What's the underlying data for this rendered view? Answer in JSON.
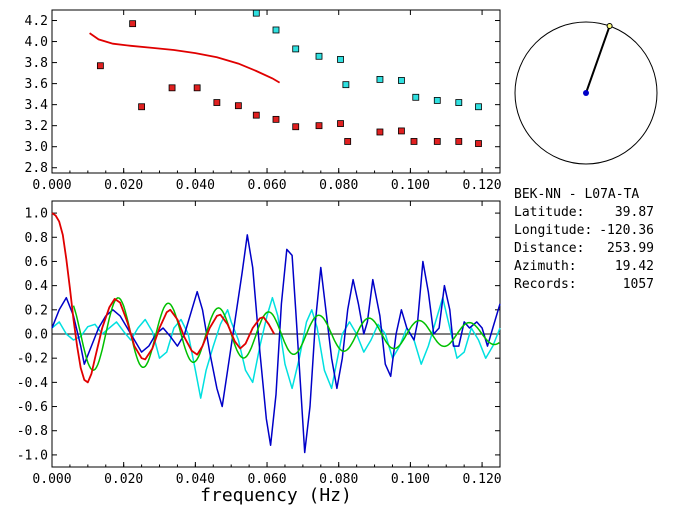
{
  "colors": {
    "red": "#e00000",
    "cyan": "#00e0e0",
    "blue": "#0000c8",
    "green": "#00c000",
    "square_red": "#e02020",
    "square_cyan": "#30e0e0",
    "center_dot": "#0000c8",
    "tip_dot": "#ffff80"
  },
  "info": {
    "station": "BEK-NN  -  L07A-TA",
    "latitude_label": "Latitude:",
    "latitude": "39.87",
    "longitude_label": "Longitude:",
    "longitude": "-120.36",
    "distance_label": "Distance:",
    "distance": "253.99",
    "azimuth_label": "Azimuth:",
    "azimuth": "19.42",
    "records_label": "Records:",
    "records": "1057"
  },
  "compass": {
    "azimuth_deg": 19.42
  },
  "chart_data": [
    {
      "type": "scatter",
      "title": "",
      "xlabel": "",
      "ylabel": "",
      "xlim": [
        0.0,
        0.125
      ],
      "ylim": [
        2.75,
        4.3
      ],
      "x_ticks": [
        "0.000",
        "0.020",
        "0.040",
        "0.060",
        "0.080",
        "0.100",
        "0.120"
      ],
      "y_ticks": [
        "2.8",
        "3.0",
        "3.2",
        "3.4",
        "3.6",
        "3.8",
        "4.0",
        "4.2"
      ],
      "series": [
        {
          "color_key": "square_red",
          "points": [
            [
              0.0135,
              3.77
            ],
            [
              0.0225,
              4.17
            ],
            [
              0.025,
              3.38
            ],
            [
              0.0335,
              3.56
            ],
            [
              0.0405,
              3.56
            ],
            [
              0.046,
              3.42
            ],
            [
              0.052,
              3.39
            ],
            [
              0.057,
              3.3
            ],
            [
              0.0625,
              3.26
            ],
            [
              0.068,
              3.19
            ],
            [
              0.0745,
              3.2
            ],
            [
              0.0805,
              3.22
            ],
            [
              0.0825,
              3.05
            ],
            [
              0.0915,
              3.14
            ],
            [
              0.0975,
              3.15
            ],
            [
              0.101,
              3.05
            ],
            [
              0.1075,
              3.05
            ],
            [
              0.1135,
              3.05
            ],
            [
              0.119,
              3.03
            ]
          ]
        },
        {
          "color_key": "square_cyan",
          "points": [
            [
              0.057,
              4.27
            ],
            [
              0.0625,
              4.11
            ],
            [
              0.068,
              3.93
            ],
            [
              0.0745,
              3.86
            ],
            [
              0.0805,
              3.83
            ],
            [
              0.082,
              3.59
            ],
            [
              0.0915,
              3.64
            ],
            [
              0.0975,
              3.63
            ],
            [
              0.1015,
              3.47
            ],
            [
              0.1075,
              3.44
            ],
            [
              0.1135,
              3.42
            ],
            [
              0.119,
              3.38
            ]
          ]
        },
        {
          "type": "line",
          "color_key": "red",
          "points": [
            [
              0.0105,
              4.08
            ],
            [
              0.013,
              4.02
            ],
            [
              0.017,
              3.98
            ],
            [
              0.022,
              3.96
            ],
            [
              0.028,
              3.94
            ],
            [
              0.034,
              3.92
            ],
            [
              0.04,
              3.89
            ],
            [
              0.046,
              3.85
            ],
            [
              0.052,
              3.79
            ],
            [
              0.057,
              3.72
            ],
            [
              0.0615,
              3.65
            ],
            [
              0.0635,
              3.61
            ]
          ]
        }
      ]
    },
    {
      "type": "line",
      "title": "",
      "xlabel": "frequency (Hz)",
      "ylabel": "",
      "xlim": [
        0.0,
        0.125
      ],
      "ylim": [
        -1.1,
        1.1
      ],
      "x_ticks": [
        "0.000",
        "0.020",
        "0.040",
        "0.060",
        "0.080",
        "0.100",
        "0.120"
      ],
      "y_ticks": [
        "-1.0",
        "-0.8",
        "-0.6",
        "-0.4",
        "-0.2",
        "0.0",
        "0.2",
        "0.4",
        "0.6",
        "0.8",
        "1.0"
      ],
      "series": [
        {
          "color_key": "cyan",
          "points": [
            [
              0.0,
              0.05
            ],
            [
              0.002,
              0.1
            ],
            [
              0.004,
              0.0
            ],
            [
              0.006,
              -0.05
            ],
            [
              0.008,
              -0.02
            ],
            [
              0.01,
              0.06
            ],
            [
              0.012,
              0.08
            ],
            [
              0.014,
              0.0
            ],
            [
              0.016,
              0.05
            ],
            [
              0.018,
              0.1
            ],
            [
              0.02,
              0.02
            ],
            [
              0.022,
              -0.05
            ],
            [
              0.024,
              0.05
            ],
            [
              0.026,
              0.12
            ],
            [
              0.028,
              0.02
            ],
            [
              0.03,
              -0.2
            ],
            [
              0.032,
              -0.15
            ],
            [
              0.034,
              0.05
            ],
            [
              0.036,
              0.12
            ],
            [
              0.038,
              0.0
            ],
            [
              0.04,
              -0.3
            ],
            [
              0.0415,
              -0.53
            ],
            [
              0.043,
              -0.3
            ],
            [
              0.045,
              -0.1
            ],
            [
              0.047,
              0.08
            ],
            [
              0.049,
              0.2
            ],
            [
              0.05,
              0.1
            ],
            [
              0.052,
              -0.05
            ],
            [
              0.054,
              -0.3
            ],
            [
              0.056,
              -0.4
            ],
            [
              0.058,
              -0.1
            ],
            [
              0.06,
              0.15
            ],
            [
              0.0615,
              0.3
            ],
            [
              0.063,
              0.15
            ],
            [
              0.065,
              -0.25
            ],
            [
              0.067,
              -0.45
            ],
            [
              0.069,
              -0.2
            ],
            [
              0.071,
              0.1
            ],
            [
              0.0725,
              0.2
            ],
            [
              0.074,
              0.05
            ],
            [
              0.076,
              -0.3
            ],
            [
              0.078,
              -0.45
            ],
            [
              0.079,
              -0.3
            ],
            [
              0.081,
              0.0
            ],
            [
              0.083,
              0.1
            ],
            [
              0.085,
              0.0
            ],
            [
              0.087,
              -0.15
            ],
            [
              0.089,
              -0.05
            ],
            [
              0.091,
              0.08
            ],
            [
              0.093,
              0.0
            ],
            [
              0.095,
              -0.2
            ],
            [
              0.097,
              -0.1
            ],
            [
              0.099,
              0.05
            ],
            [
              0.101,
              -0.05
            ],
            [
              0.103,
              -0.25
            ],
            [
              0.105,
              -0.1
            ],
            [
              0.107,
              0.1
            ],
            [
              0.109,
              0.3
            ],
            [
              0.111,
              0.05
            ],
            [
              0.113,
              -0.2
            ],
            [
              0.115,
              -0.15
            ],
            [
              0.117,
              0.05
            ],
            [
              0.119,
              -0.05
            ],
            [
              0.121,
              -0.2
            ],
            [
              0.123,
              -0.1
            ],
            [
              0.125,
              0.05
            ]
          ]
        },
        {
          "color_key": "blue",
          "points": [
            [
              0.0,
              0.05
            ],
            [
              0.002,
              0.2
            ],
            [
              0.004,
              0.3
            ],
            [
              0.006,
              0.15
            ],
            [
              0.008,
              -0.1
            ],
            [
              0.009,
              -0.25
            ],
            [
              0.011,
              -0.1
            ],
            [
              0.013,
              0.05
            ],
            [
              0.015,
              0.15
            ],
            [
              0.017,
              0.2
            ],
            [
              0.019,
              0.15
            ],
            [
              0.021,
              0.05
            ],
            [
              0.023,
              -0.05
            ],
            [
              0.025,
              -0.15
            ],
            [
              0.027,
              -0.1
            ],
            [
              0.029,
              0.0
            ],
            [
              0.031,
              0.05
            ],
            [
              0.033,
              -0.02
            ],
            [
              0.035,
              -0.1
            ],
            [
              0.037,
              0.0
            ],
            [
              0.039,
              0.2
            ],
            [
              0.0405,
              0.35
            ],
            [
              0.042,
              0.2
            ],
            [
              0.044,
              -0.15
            ],
            [
              0.046,
              -0.45
            ],
            [
              0.0475,
              -0.6
            ],
            [
              0.049,
              -0.3
            ],
            [
              0.051,
              0.1
            ],
            [
              0.053,
              0.5
            ],
            [
              0.0545,
              0.82
            ],
            [
              0.056,
              0.55
            ],
            [
              0.058,
              -0.15
            ],
            [
              0.0598,
              -0.7
            ],
            [
              0.061,
              -0.92
            ],
            [
              0.0625,
              -0.5
            ],
            [
              0.064,
              0.25
            ],
            [
              0.0655,
              0.7
            ],
            [
              0.067,
              0.65
            ],
            [
              0.068,
              0.2
            ],
            [
              0.0695,
              -0.5
            ],
            [
              0.0705,
              -0.98
            ],
            [
              0.072,
              -0.6
            ],
            [
              0.0735,
              0.1
            ],
            [
              0.075,
              0.55
            ],
            [
              0.076,
              0.3
            ],
            [
              0.078,
              -0.2
            ],
            [
              0.0795,
              -0.45
            ],
            [
              0.081,
              -0.2
            ],
            [
              0.0825,
              0.2
            ],
            [
              0.084,
              0.45
            ],
            [
              0.0855,
              0.25
            ],
            [
              0.087,
              0.0
            ],
            [
              0.088,
              0.1
            ],
            [
              0.0895,
              0.45
            ],
            [
              0.0915,
              0.15
            ],
            [
              0.093,
              -0.25
            ],
            [
              0.0945,
              -0.35
            ],
            [
              0.096,
              0.0
            ],
            [
              0.0975,
              0.2
            ],
            [
              0.099,
              0.05
            ],
            [
              0.101,
              -0.05
            ],
            [
              0.102,
              0.1
            ],
            [
              0.1035,
              0.6
            ],
            [
              0.105,
              0.35
            ],
            [
              0.1065,
              0.0
            ],
            [
              0.108,
              0.05
            ],
            [
              0.1095,
              0.4
            ],
            [
              0.111,
              0.2
            ],
            [
              0.112,
              -0.1
            ],
            [
              0.1135,
              -0.1
            ],
            [
              0.115,
              0.1
            ],
            [
              0.1165,
              0.05
            ],
            [
              0.1185,
              0.1
            ],
            [
              0.12,
              0.05
            ],
            [
              0.1215,
              -0.1
            ],
            [
              0.123,
              0.05
            ],
            [
              0.125,
              0.25
            ]
          ]
        },
        {
          "color_key": "green",
          "amplitude": 0.3,
          "period": 0.014,
          "phase_x": 0.0185,
          "decay": 0.55,
          "points": []
        },
        {
          "color_key": "red",
          "points": [
            [
              0.0,
              1.0
            ],
            [
              0.001,
              0.98
            ],
            [
              0.002,
              0.93
            ],
            [
              0.003,
              0.82
            ],
            [
              0.004,
              0.62
            ],
            [
              0.005,
              0.38
            ],
            [
              0.006,
              0.12
            ],
            [
              0.007,
              -0.1
            ],
            [
              0.008,
              -0.28
            ],
            [
              0.009,
              -0.38
            ],
            [
              0.01,
              -0.4
            ],
            [
              0.011,
              -0.33
            ],
            [
              0.012,
              -0.2
            ],
            [
              0.014,
              0.05
            ],
            [
              0.016,
              0.22
            ],
            [
              0.0175,
              0.29
            ],
            [
              0.019,
              0.26
            ],
            [
              0.021,
              0.1
            ],
            [
              0.023,
              -0.1
            ],
            [
              0.025,
              -0.2
            ],
            [
              0.026,
              -0.21
            ],
            [
              0.028,
              -0.12
            ],
            [
              0.03,
              0.05
            ],
            [
              0.032,
              0.18
            ],
            [
              0.033,
              0.2
            ],
            [
              0.035,
              0.12
            ],
            [
              0.037,
              -0.03
            ],
            [
              0.039,
              -0.14
            ],
            [
              0.0405,
              -0.17
            ],
            [
              0.042,
              -0.1
            ],
            [
              0.044,
              0.05
            ],
            [
              0.046,
              0.15
            ],
            [
              0.047,
              0.16
            ],
            [
              0.049,
              0.08
            ],
            [
              0.051,
              -0.06
            ],
            [
              0.0525,
              -0.12
            ],
            [
              0.054,
              -0.08
            ],
            [
              0.056,
              0.05
            ],
            [
              0.058,
              0.13
            ],
            [
              0.059,
              0.14
            ],
            [
              0.0605,
              0.08
            ],
            [
              0.062,
              0.0
            ]
          ]
        }
      ]
    }
  ]
}
